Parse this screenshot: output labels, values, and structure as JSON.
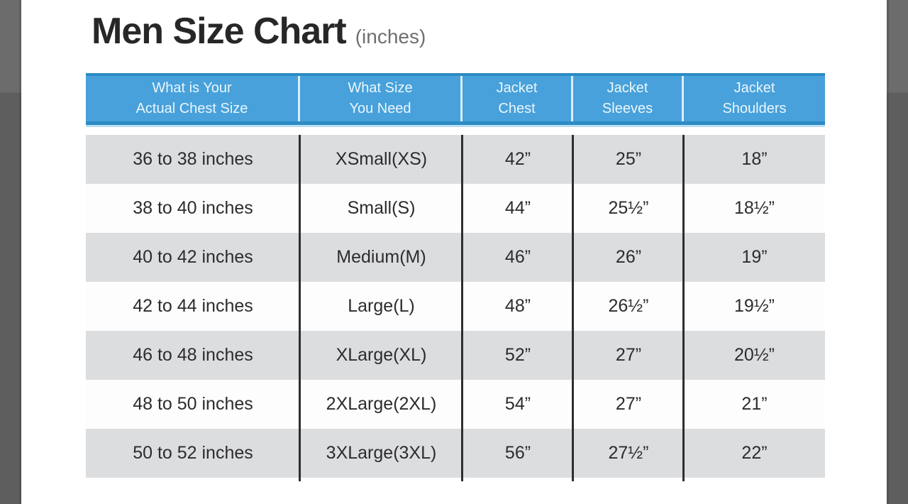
{
  "page": {
    "title": "Men Size Chart",
    "title_suffix": "(inches)",
    "units": "inches"
  },
  "colors": {
    "header_blue": "#48a1da",
    "header_border_blue": "#2c8bc3",
    "header_text": "#eaf6fd",
    "row_shaded": "#dcdddf",
    "row_plain": "#fdfdfd",
    "body_text": "#2c2c2e",
    "edge_gray": "#6c6c6c",
    "divider_black": "#2e2e30"
  },
  "table": {
    "headers": [
      {
        "line1": "What is Your",
        "line2": "Actual Chest Size"
      },
      {
        "line1": "What Size",
        "line2": "You Need"
      },
      {
        "line1": "Jacket",
        "line2": "Chest"
      },
      {
        "line1": "Jacket",
        "line2": "Sleeves"
      },
      {
        "line1": "Jacket",
        "line2": "Shoulders"
      }
    ],
    "rows": [
      [
        "36 to 38 inches",
        "XSmall(XS)",
        "42”",
        "25”",
        "18”"
      ],
      [
        "38 to 40 inches",
        "Small(S)",
        "44”",
        "25½”",
        "18½”"
      ],
      [
        "40 to 42 inches",
        "Medium(M)",
        "46”",
        "26”",
        "19”"
      ],
      [
        "42 to 44 inches",
        "Large(L)",
        "48”",
        "26½”",
        "19½”"
      ],
      [
        "46 to 48 inches",
        "XLarge(XL)",
        "52”",
        "27”",
        "20½”"
      ],
      [
        "48 to 50 inches",
        "2XLarge(2XL)",
        "54”",
        "27”",
        "21”"
      ],
      [
        "50 to 52 inches",
        "3XLarge(3XL)",
        "56”",
        "27½”",
        "22”"
      ]
    ]
  },
  "chart_data": {
    "type": "table",
    "title": "Men Size Chart (inches)",
    "columns": [
      "What is Your Actual Chest Size",
      "What Size You Need",
      "Jacket Chest",
      "Jacket Sleeves",
      "Jacket Shoulders"
    ],
    "rows": [
      [
        "36 to 38 inches",
        "XSmall(XS)",
        "42”",
        "25”",
        "18”"
      ],
      [
        "38 to 40 inches",
        "Small(S)",
        "44”",
        "25½”",
        "18½”"
      ],
      [
        "40 to 42 inches",
        "Medium(M)",
        "46”",
        "26”",
        "19”"
      ],
      [
        "42 to 44 inches",
        "Large(L)",
        "48”",
        "26½”",
        "19½”"
      ],
      [
        "46 to 48 inches",
        "XLarge(XL)",
        "52”",
        "27”",
        "20½”"
      ],
      [
        "48 to 50 inches",
        "2XLarge(2XL)",
        "54”",
        "27”",
        "21”"
      ],
      [
        "50 to 52 inches",
        "3XLarge(3XL)",
        "56”",
        "27½”",
        "22”"
      ]
    ],
    "layout": {
      "row_striping": "alternating gray/white",
      "column_dividers": "black vertical rules",
      "header_position": "top"
    }
  }
}
